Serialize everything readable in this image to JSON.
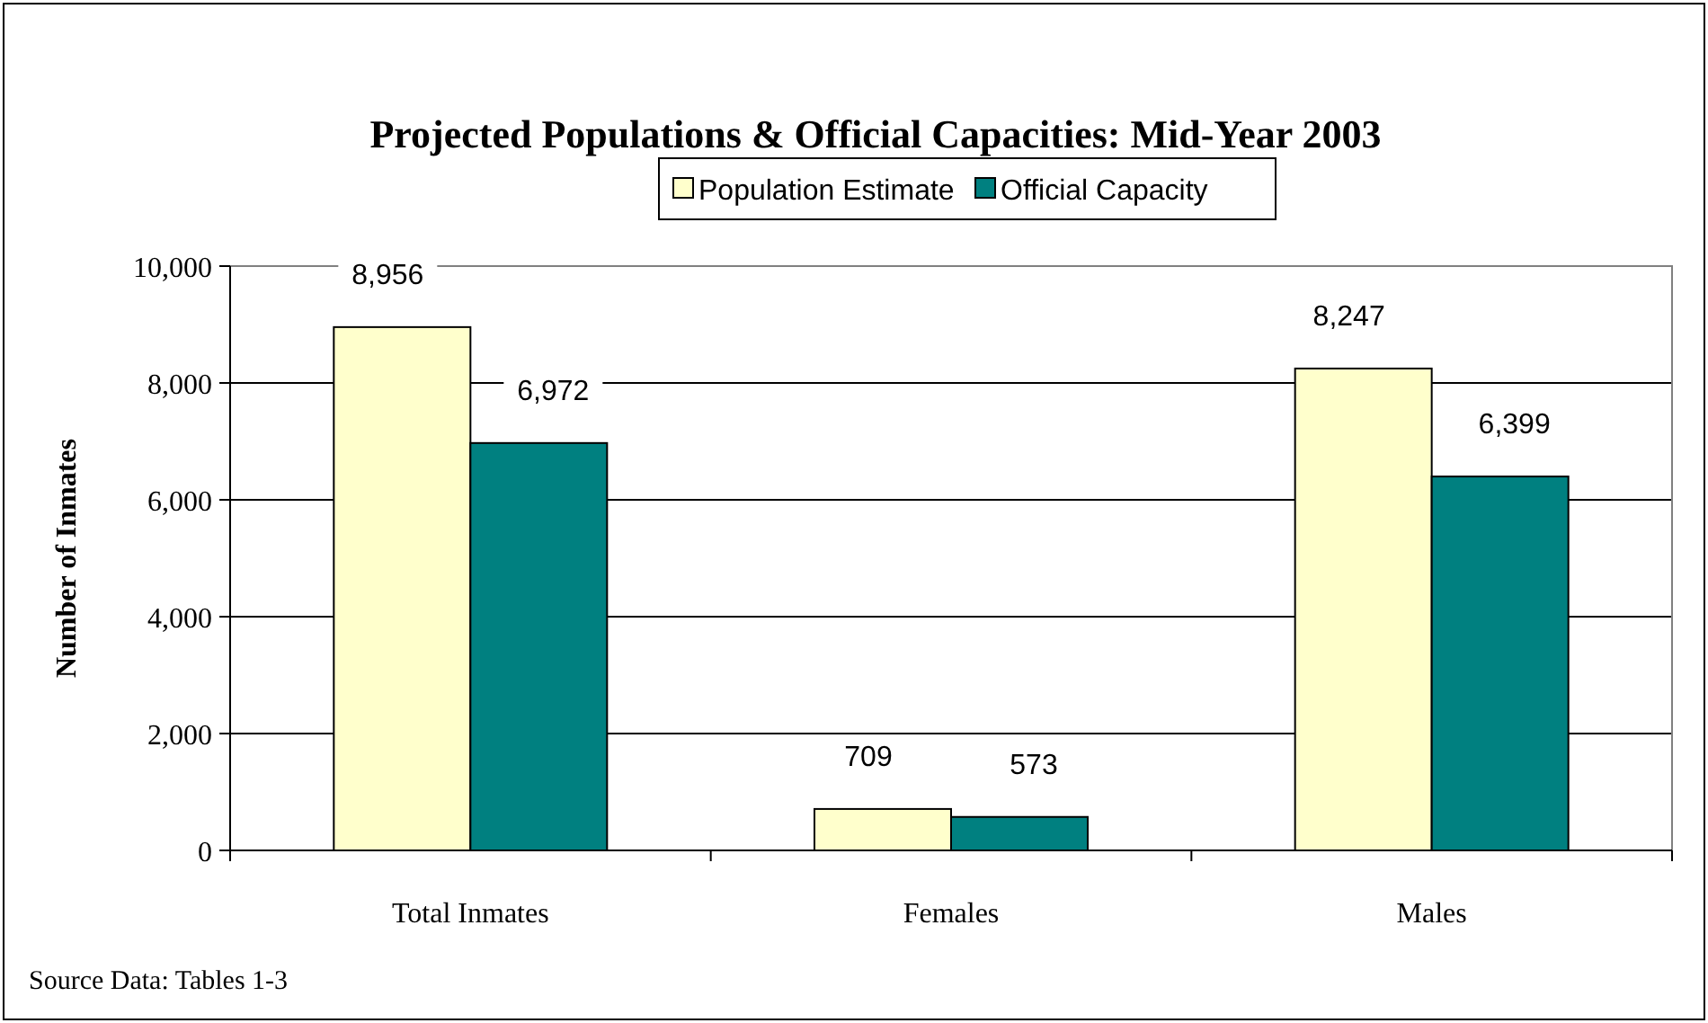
{
  "chart_data": {
    "type": "bar",
    "title": "Projected Populations & Official Capacities: Mid-Year 2003",
    "ylabel": "Number of Inmates",
    "categories": [
      "Total Inmates",
      "Females",
      "Males"
    ],
    "series": [
      {
        "name": "Population Estimate",
        "color": "#ffffcc",
        "values": [
          8956,
          709,
          8247
        ],
        "value_labels": [
          "8,956",
          "709",
          "8,247"
        ]
      },
      {
        "name": "Official Capacity",
        "color": "#008080",
        "values": [
          6972,
          573,
          6399
        ],
        "value_labels": [
          "6,972",
          "573",
          "6,399"
        ]
      }
    ],
    "ylim": [
      0,
      10000
    ],
    "yticks": [
      {
        "value": 0,
        "label": "0"
      },
      {
        "value": 2000,
        "label": "2,000"
      },
      {
        "value": 4000,
        "label": "4,000"
      },
      {
        "value": 6000,
        "label": "6,000"
      },
      {
        "value": 8000,
        "label": "8,000"
      },
      {
        "value": 10000,
        "label": "10,000"
      }
    ],
    "grid": "y",
    "legend": "top",
    "annotations": [
      "Source Data: Tables 1-3"
    ]
  }
}
